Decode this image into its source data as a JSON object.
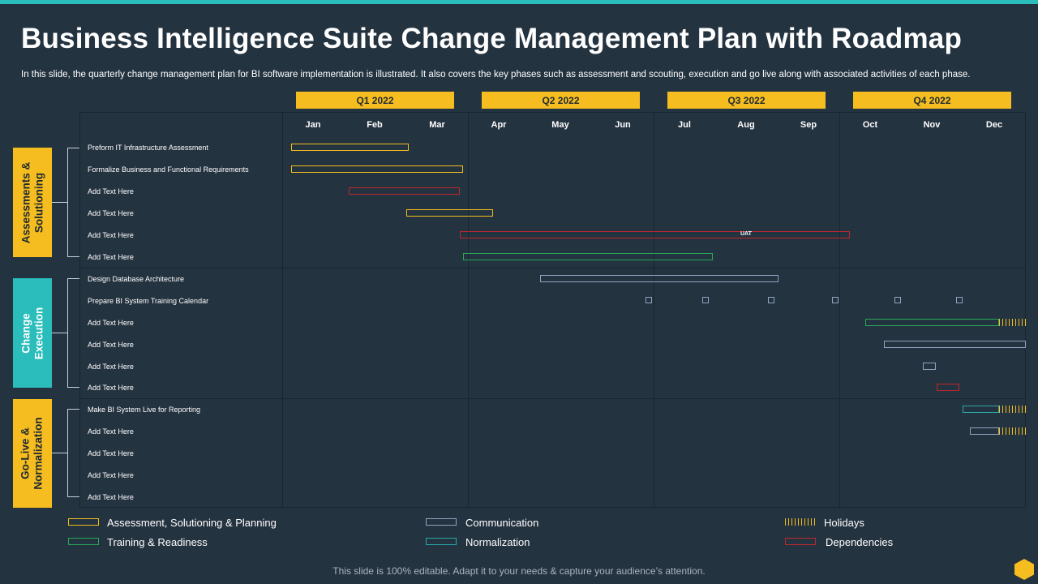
{
  "slide": {
    "title": "Business Intelligence Suite Change Management Plan with Roadmap",
    "subtitle": "In this slide, the quarterly change management plan for BI software implementation is illustrated. It also covers the key phases such as assessment and scouting, execution and go live along with associated activities of each phase.",
    "footer": "This slide is 100% editable. Adapt it to your needs & capture your audience’s attention."
  },
  "quarters": [
    "Q1 2022",
    "Q2 2022",
    "Q3 2022",
    "Q4 2022"
  ],
  "months": [
    "Jan",
    "Feb",
    "Mar",
    "Apr",
    "May",
    "Jun",
    "Jul",
    "Aug",
    "Sep",
    "Oct",
    "Nov",
    "Dec"
  ],
  "phases": [
    {
      "label": "Assessments &\nSolutioning",
      "color": "#f5bd1f",
      "text_color": "#1f2a33"
    },
    {
      "label": "Change\nExecution",
      "color": "#2bbcbc",
      "text_color": "#ffffff"
    },
    {
      "label": "Go-Live &\nNormalization",
      "color": "#f5bd1f",
      "text_color": "#1f2a33"
    }
  ],
  "tasks": [
    "Preform IT Infrastructure Assessment",
    "Formalize Business and Functional Requirements",
    "Add Text Here",
    "Add Text Here",
    "Add Text Here",
    "Add Text Here",
    "Design Database Architecture",
    "Prepare BI System Training Calendar",
    "Add Text Here",
    "Add Text Here",
    "Add Text Here",
    "Add Text Here",
    "Make BI System Live for Reporting",
    "Add Text Here",
    "Add Text Here",
    "Add Text Here",
    "Add Text Here"
  ],
  "bar_labels": {
    "uat": "UAT"
  },
  "legend": {
    "assessment": "Assessment, Solutioning & Planning",
    "training": "Training  & Readiness",
    "communication": "Communication",
    "normalization": "Normalization",
    "holidays": "Holidays",
    "dependencies": "Dependencies"
  },
  "colors": {
    "background": "#243340",
    "accent_yellow": "#f5bd1f",
    "accent_teal": "#2bbcbc",
    "dependency_red": "#c0262c",
    "training_green": "#27a85a",
    "communication_blue": "#8fa4bf",
    "normalization_teal": "#2aa8a8"
  }
}
